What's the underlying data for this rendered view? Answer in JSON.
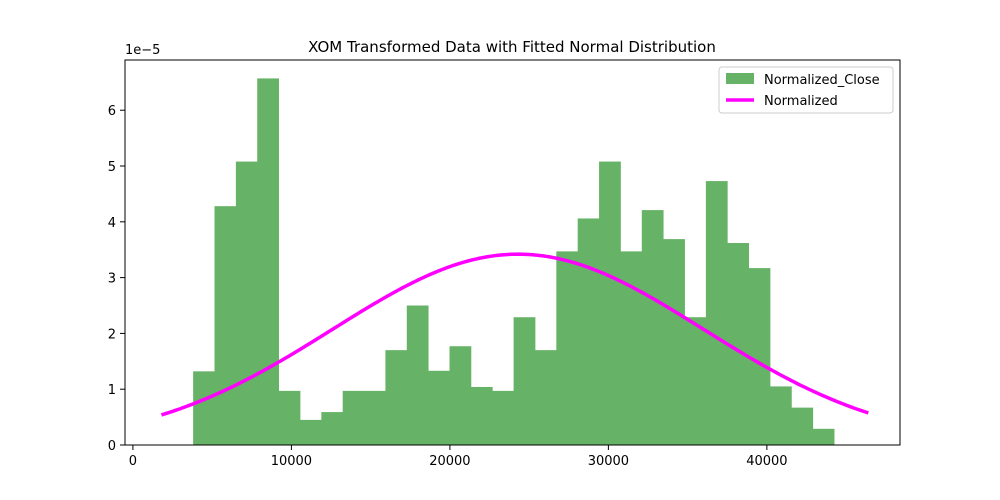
{
  "chart_data": {
    "type": "bar",
    "title": "XOM Transformed Data with Fitted Normal Distribution",
    "xlabel": "",
    "ylabel": "",
    "y_offset_label": "1e−5",
    "xlim": [
      -500,
      48400
    ],
    "ylim": [
      0,
      6.9
    ],
    "x_ticks": [
      0,
      10000,
      20000,
      30000,
      40000
    ],
    "x_tick_labels": [
      "0",
      "10000",
      "20000",
      "30000",
      "40000"
    ],
    "y_ticks": [
      0,
      1,
      2,
      3,
      4,
      5,
      6
    ],
    "y_tick_labels": [
      "0",
      "1",
      "2",
      "3",
      "4",
      "5",
      "6"
    ],
    "legend_position": "top-right",
    "bin_start": 3800,
    "bin_width": 1348,
    "series": [
      {
        "name": "Normalized_Close",
        "kind": "histogram",
        "color": "#66b266",
        "values": [
          1.32,
          4.28,
          5.08,
          6.57,
          0.97,
          0.45,
          0.59,
          0.97,
          0.97,
          1.7,
          2.5,
          1.33,
          1.77,
          1.04,
          0.97,
          2.29,
          1.7,
          3.47,
          4.06,
          5.08,
          3.47,
          4.21,
          3.69,
          2.29,
          4.73,
          3.62,
          3.17,
          1.05,
          0.67,
          0.29
        ]
      },
      {
        "name": "Normalized",
        "kind": "line",
        "color": "#ff00ff",
        "mean": 24300,
        "std": 11700,
        "peak": 3.42,
        "x_range": [
          1800,
          46400
        ]
      }
    ]
  }
}
